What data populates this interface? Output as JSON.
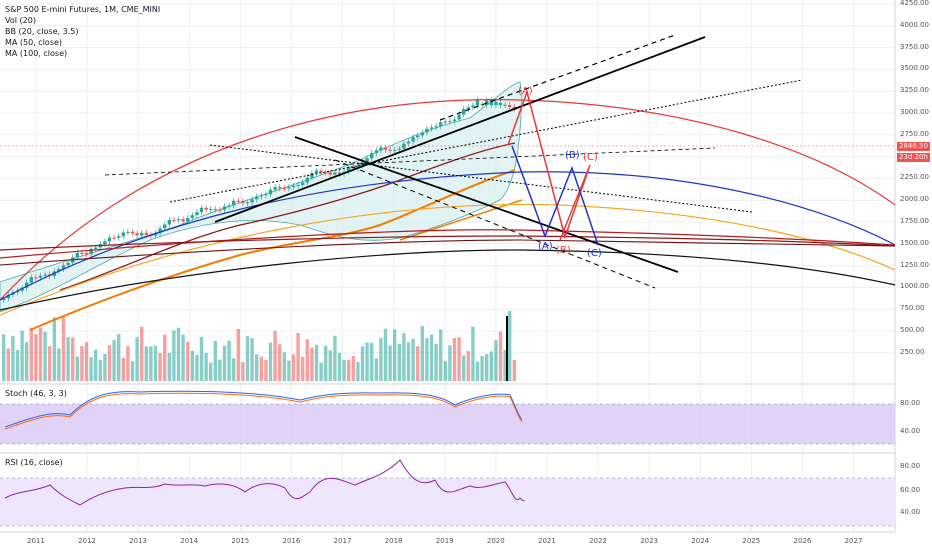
{
  "header": {
    "symbol_line": "S&P 500 E-mini Futures, 1M, CME_MINI",
    "indicators": [
      "Vol (20)",
      "BB (20, close, 3.5)",
      "MA (50, close)",
      "MA (100, close)"
    ]
  },
  "price_axis": {
    "ticks": [
      "4250.00",
      "4000.00",
      "3750.00",
      "3500.00",
      "3250.00",
      "3000.00",
      "2750.00",
      "2500.00",
      "2250.00",
      "2000.00",
      "1750.00",
      "1500.00",
      "1250.00",
      "1000.00",
      "750.00",
      "500.00",
      "250.00"
    ],
    "last_price": "2846.50",
    "countdown": "23d 20h",
    "last_price_color": "#ef5350"
  },
  "stoch_pane": {
    "title": "Stoch (46, 3, 3)",
    "ticks": [
      "80.00",
      "40.00"
    ]
  },
  "rsi_pane": {
    "title": "RSI (16, close)",
    "ticks": [
      "80.00",
      "60.00",
      "40.00"
    ]
  },
  "time_axis": {
    "labels": [
      "2011",
      "2012",
      "2013",
      "2014",
      "2015",
      "2016",
      "2017",
      "2018",
      "2019",
      "2020",
      "2021",
      "2022",
      "2023",
      "2024",
      "2025",
      "2026",
      "2027"
    ]
  },
  "wave_labels": {
    "red": [
      "(A)",
      "(B)",
      "(C)"
    ],
    "blue": [
      "(A)",
      "(B)",
      "(C)"
    ]
  },
  "colors": {
    "up_volume": "#26a69a",
    "down_volume": "#ef5350",
    "stoch_band": "#d9c8f5",
    "rsi_band": "#ece4fb",
    "bb_fill": "#d5eef0"
  }
}
